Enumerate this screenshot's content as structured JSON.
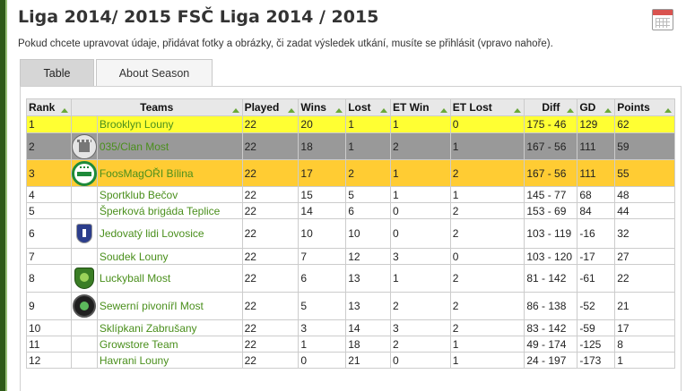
{
  "header": {
    "title": "Liga 2014/ 2015 FSČ Liga 2014 / 2015",
    "notice": "Pokud chcete upravovat údaje, přidávat fotky a obrázky, či zadat výsledek utkání, musíte se přihlásit (vpravo nahoře)."
  },
  "tabs": [
    {
      "label": "Table"
    },
    {
      "label": "About Season"
    }
  ],
  "table": {
    "columns": [
      "Rank",
      "Teams",
      "Played",
      "Wins",
      "Lost",
      "ET Win",
      "ET Lost",
      "Diff",
      "GD",
      "Points"
    ],
    "rows": [
      {
        "rank": "1",
        "logo": "",
        "team": "Brooklyn Louny",
        "played": "22",
        "wins": "20",
        "lost": "1",
        "et_win": "1",
        "et_lost": "0",
        "diff": "175 - 46",
        "gd": "129",
        "points": "62"
      },
      {
        "rank": "2",
        "logo": "castle-logo-icon",
        "team": "035/Clan Most",
        "played": "22",
        "wins": "18",
        "lost": "1",
        "et_win": "2",
        "et_lost": "1",
        "diff": "167 - 56",
        "gd": "111",
        "points": "59"
      },
      {
        "rank": "3",
        "logo": "foosball-logo-icon",
        "team": "FoosMagOŘI Bílina",
        "played": "22",
        "wins": "17",
        "lost": "2",
        "et_win": "1",
        "et_lost": "2",
        "diff": "167 - 56",
        "gd": "111",
        "points": "55"
      },
      {
        "rank": "4",
        "logo": "",
        "team": "Sportklub Bečov",
        "played": "22",
        "wins": "15",
        "lost": "5",
        "et_win": "1",
        "et_lost": "1",
        "diff": "145 - 77",
        "gd": "68",
        "points": "48"
      },
      {
        "rank": "5",
        "logo": "",
        "team": "Šperková brigáda Teplice",
        "played": "22",
        "wins": "14",
        "lost": "6",
        "et_win": "0",
        "et_lost": "2",
        "diff": "153 - 69",
        "gd": "84",
        "points": "44"
      },
      {
        "rank": "6",
        "logo": "shield-logo-icon",
        "team": "Jedovatý lidi Lovosice",
        "played": "22",
        "wins": "10",
        "lost": "10",
        "et_win": "0",
        "et_lost": "2",
        "diff": "103 - 119",
        "gd": "-16",
        "points": "32"
      },
      {
        "rank": "7",
        "logo": "",
        "team": "Soudek Louny",
        "played": "22",
        "wins": "7",
        "lost": "12",
        "et_win": "3",
        "et_lost": "0",
        "diff": "103 - 120",
        "gd": "-17",
        "points": "27"
      },
      {
        "rank": "8",
        "logo": "leaf-logo-icon",
        "team": "Luckyball Most",
        "played": "22",
        "wins": "6",
        "lost": "13",
        "et_win": "1",
        "et_lost": "2",
        "diff": "81 - 142",
        "gd": "-61",
        "points": "22"
      },
      {
        "rank": "9",
        "logo": "pub-logo-icon",
        "team": "Sewerní pivonířI Most",
        "played": "22",
        "wins": "5",
        "lost": "13",
        "et_win": "2",
        "et_lost": "2",
        "diff": "86 - 138",
        "gd": "-52",
        "points": "21"
      },
      {
        "rank": "10",
        "logo": "",
        "team": "Sklípkani Zabrušany",
        "played": "22",
        "wins": "3",
        "lost": "14",
        "et_win": "3",
        "et_lost": "2",
        "diff": "83 - 142",
        "gd": "-59",
        "points": "17"
      },
      {
        "rank": "11",
        "logo": "",
        "team": "Growstore Team",
        "played": "22",
        "wins": "1",
        "lost": "18",
        "et_win": "2",
        "et_lost": "1",
        "diff": "49 - 174",
        "gd": "-125",
        "points": "8"
      },
      {
        "rank": "12",
        "logo": "",
        "team": "Havrani Louny",
        "played": "22",
        "wins": "0",
        "lost": "21",
        "et_win": "0",
        "et_lost": "1",
        "diff": "24 - 197",
        "gd": "-173",
        "points": "1"
      }
    ]
  },
  "colors": {
    "rank1": "#ffff33",
    "rank2": "#999999",
    "rank3": "#ffcc33",
    "team_link": "#4a8f1c"
  },
  "icons": {
    "calendar": "calendar-icon",
    "sort": "sort-arrow-icon"
  }
}
